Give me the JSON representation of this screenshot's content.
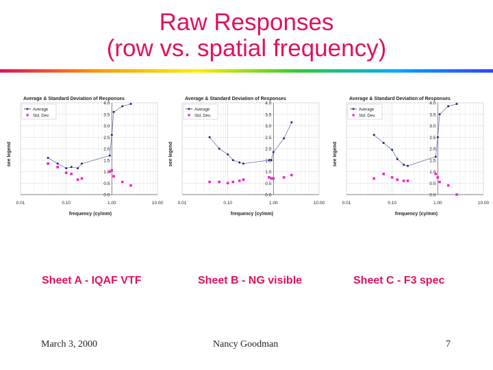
{
  "slide": {
    "title_line1": "Raw Responses",
    "title_line2": "(row vs. spatial frequency)",
    "title_color": "#e0115f",
    "rule_colors": [
      "#e0115f",
      "#ff9900",
      "#ffee00",
      "#33cc33",
      "#00aaff",
      "#3344ff"
    ],
    "footer_date": "March 3, 2000",
    "footer_author": "Nancy Goodman",
    "footer_page": "7"
  },
  "chart_data": [
    {
      "type": "line",
      "caption": "Sheet A - IQAF VTF",
      "title": "Average & Standard Deviation of Responses",
      "xlabel": "frequency (cy/mm)",
      "ylabel": "see legend",
      "x_scale": "log",
      "xlim": [
        0.01,
        10
      ],
      "ylim": [
        0,
        4
      ],
      "x_ticks": [
        "0.01",
        "0.10",
        "1.00",
        "10.00"
      ],
      "y_ticks": [
        "0.0",
        "0.5",
        "1.0",
        "1.5",
        "2.0",
        "2.5",
        "3.0",
        "3.5",
        "4.0"
      ],
      "legend_position": "top-left",
      "series": [
        {
          "name": "Average",
          "style": "line",
          "color": "#1a237e",
          "x": [
            0.04,
            0.065,
            0.1,
            0.13,
            0.18,
            0.22,
            0.9,
            1.0,
            1.1,
            1.7,
            2.6
          ],
          "y": [
            1.6,
            1.35,
            1.15,
            1.2,
            1.15,
            1.35,
            1.7,
            2.6,
            3.6,
            3.85,
            3.95
          ]
        },
        {
          "name": "Std. Dev.",
          "style": "marker",
          "color": "#ee22cc",
          "x": [
            0.04,
            0.065,
            0.1,
            0.13,
            0.18,
            0.22,
            0.9,
            1.0,
            1.1,
            1.7,
            2.6
          ],
          "y": [
            1.35,
            1.2,
            0.95,
            0.9,
            0.65,
            0.7,
            1.0,
            1.05,
            0.8,
            0.55,
            0.4
          ]
        }
      ]
    },
    {
      "type": "line",
      "caption": "Sheet B - NG visible",
      "title": "Average & Standard Deviation of Responses",
      "xlabel": "frequency (cy/mm)",
      "ylabel": "see legend",
      "x_scale": "log",
      "xlim": [
        0.01,
        10
      ],
      "ylim": [
        0,
        4
      ],
      "x_ticks": [
        "0.01",
        "0.10",
        "1.00",
        "10.00"
      ],
      "y_ticks": [
        "0.0",
        "0.5",
        "1.0",
        "1.5",
        "2.0",
        "2.5",
        "3.0",
        "3.5",
        "4.0"
      ],
      "legend_position": "top-left",
      "series": [
        {
          "name": "Average",
          "style": "line",
          "color": "#1a237e",
          "x": [
            0.04,
            0.065,
            0.1,
            0.13,
            0.18,
            0.22,
            0.8,
            0.9,
            1.0,
            1.7,
            2.5
          ],
          "y": [
            2.5,
            2.0,
            1.75,
            1.5,
            1.4,
            1.35,
            1.5,
            1.5,
            1.85,
            2.45,
            3.15
          ]
        },
        {
          "name": "Std. Dev.",
          "style": "marker",
          "color": "#ee22cc",
          "x": [
            0.04,
            0.065,
            0.1,
            0.13,
            0.18,
            0.22,
            0.8,
            0.9,
            1.0,
            1.7,
            2.5
          ],
          "y": [
            0.55,
            0.55,
            0.5,
            0.55,
            0.6,
            0.65,
            0.75,
            0.7,
            0.7,
            0.75,
            0.85
          ]
        }
      ]
    },
    {
      "type": "line",
      "caption": "Sheet C - F3 spec",
      "title": "Average & Standard Deviation of Responses",
      "xlabel": "frequency (cy/mm)",
      "ylabel": "see legend",
      "x_scale": "log",
      "xlim": [
        0.01,
        10
      ],
      "ylim": [
        0,
        4
      ],
      "x_ticks": [
        "0.01",
        "0.10",
        "1.00",
        "10.00"
      ],
      "y_ticks": [
        "0.0",
        "0.5",
        "1.0",
        "1.5",
        "2.0",
        "2.5",
        "3.0",
        "3.5",
        "4.0"
      ],
      "legend_position": "top-left",
      "series": [
        {
          "name": "Average",
          "style": "line",
          "color": "#1a237e",
          "x": [
            0.04,
            0.065,
            0.1,
            0.13,
            0.18,
            0.22,
            0.9,
            1.0,
            1.1,
            1.7,
            2.6
          ],
          "y": [
            2.6,
            2.25,
            1.95,
            1.55,
            1.3,
            1.25,
            1.65,
            2.5,
            3.5,
            3.85,
            3.95
          ]
        },
        {
          "name": "Std. Dev.",
          "style": "marker",
          "color": "#ee22cc",
          "x": [
            0.04,
            0.065,
            0.1,
            0.13,
            0.18,
            0.22,
            0.9,
            1.0,
            1.1,
            1.7,
            2.6
          ],
          "y": [
            0.7,
            0.9,
            0.75,
            0.65,
            0.6,
            0.6,
            0.9,
            0.75,
            0.55,
            0.4,
            0.0
          ]
        }
      ]
    }
  ]
}
